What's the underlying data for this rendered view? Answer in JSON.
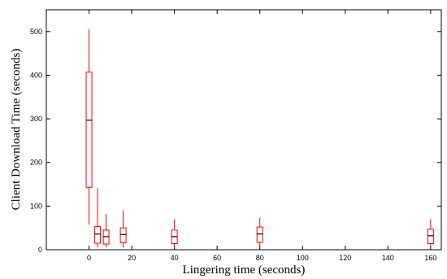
{
  "chart_data": {
    "type": "box",
    "title": "",
    "xlabel": "Lingering time (seconds)",
    "ylabel": "Client Download Time (seconds)",
    "xlim": [
      -20,
      165
    ],
    "ylim": [
      0,
      550
    ],
    "xticks": [
      0,
      20,
      40,
      60,
      80,
      100,
      120,
      140,
      160
    ],
    "yticks": [
      0,
      100,
      200,
      300,
      400,
      500
    ],
    "grid": false,
    "box_color": "#ff0000",
    "median_color": "#000000",
    "boxes": [
      {
        "x": 0,
        "whisker_low": 58,
        "q1": 143,
        "median": 297,
        "q3": 407,
        "whisker_high": 505
      },
      {
        "x": 4,
        "whisker_low": 5,
        "q1": 15,
        "median": 36,
        "q3": 53,
        "whisker_high": 141
      },
      {
        "x": 8,
        "whisker_low": 5,
        "q1": 13,
        "median": 30,
        "q3": 45,
        "whisker_high": 82
      },
      {
        "x": 16,
        "whisker_low": 5,
        "q1": 16,
        "median": 35,
        "q3": 50,
        "whisker_high": 90
      },
      {
        "x": 40,
        "whisker_low": 5,
        "q1": 14,
        "median": 30,
        "q3": 45,
        "whisker_high": 70
      },
      {
        "x": 80,
        "whisker_low": 5,
        "q1": 17,
        "median": 36,
        "q3": 52,
        "whisker_high": 73
      },
      {
        "x": 160,
        "whisker_low": 5,
        "q1": 14,
        "median": 32,
        "q3": 47,
        "whisker_high": 70
      }
    ]
  }
}
